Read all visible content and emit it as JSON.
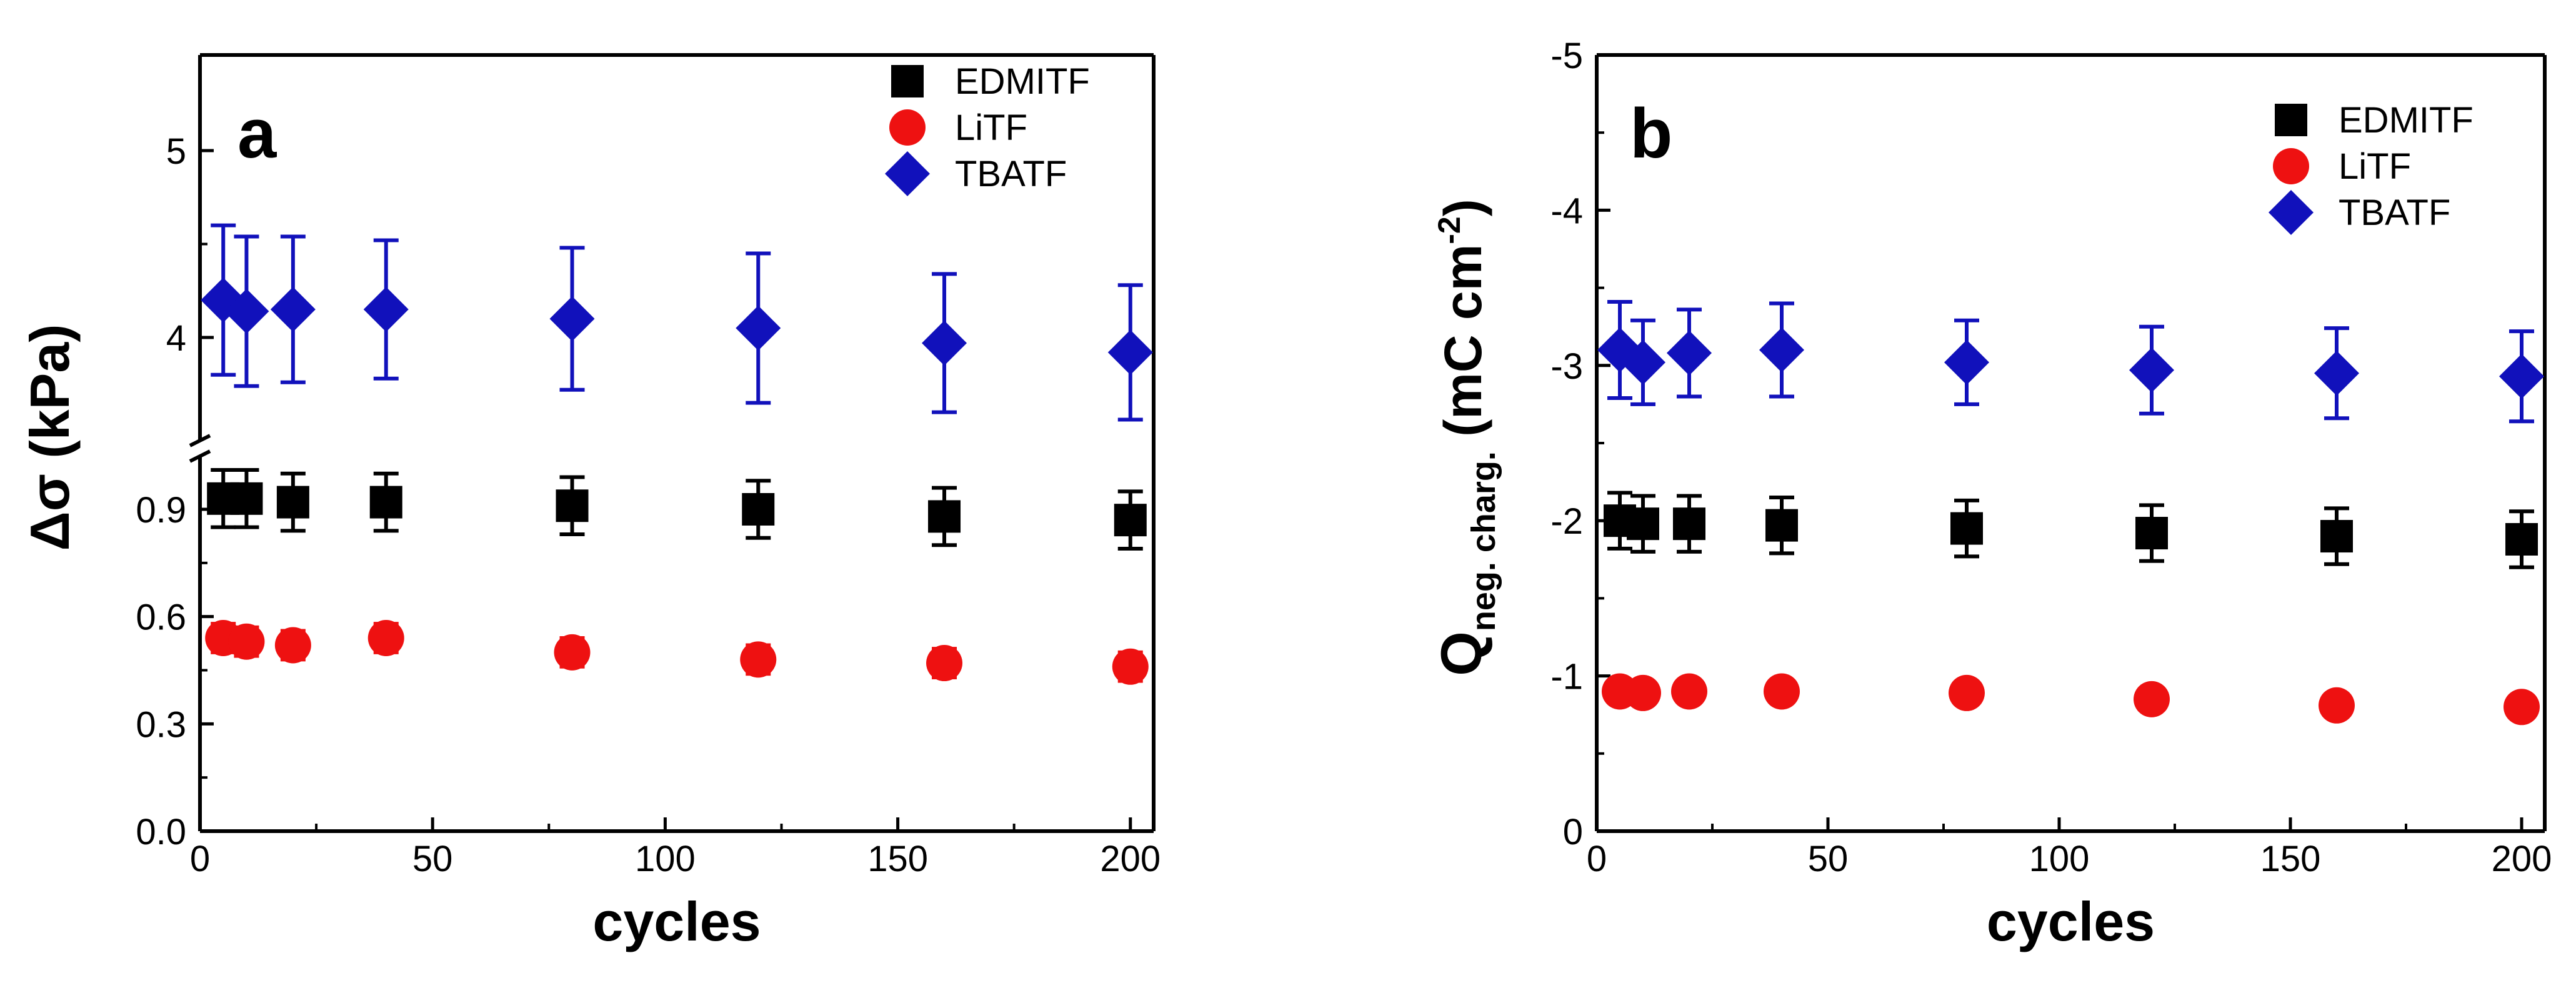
{
  "chart_data": [
    {
      "type": "scatter",
      "panel_label": "a",
      "xlabel": "cycles",
      "ylabel": "Δσ (kPa)",
      "x_ticks": [
        "0",
        "50",
        "100",
        "150",
        "200"
      ],
      "y_ticks_upper": [
        "4",
        "5"
      ],
      "y_ticks_lower": [
        "0.0",
        "0.3",
        "0.6",
        "0.9"
      ],
      "xlim": [
        0,
        205
      ],
      "ylim_upper": [
        3.55,
        5.5
      ],
      "ylim_lower": [
        0,
        1.05
      ],
      "broken_axis": true,
      "legend_position": "top-right",
      "series": [
        {
          "name": "EDMITF",
          "marker": "square",
          "color": "#000000",
          "x": [
            5,
            10,
            20,
            40,
            80,
            120,
            160,
            200
          ],
          "y": [
            0.93,
            0.93,
            0.92,
            0.92,
            0.91,
            0.9,
            0.88,
            0.87
          ],
          "err": [
            0.08,
            0.08,
            0.08,
            0.08,
            0.08,
            0.08,
            0.08,
            0.08
          ]
        },
        {
          "name": "LiTF",
          "marker": "circle",
          "color": "#ee1111",
          "x": [
            5,
            10,
            20,
            40,
            80,
            120,
            160,
            200
          ],
          "y": [
            0.54,
            0.53,
            0.52,
            0.54,
            0.5,
            0.48,
            0.47,
            0.46
          ],
          "err": [
            0.04,
            0.04,
            0.04,
            0.04,
            0.04,
            0.04,
            0.04,
            0.04
          ]
        },
        {
          "name": "TBATF",
          "marker": "diamond",
          "color": "#1111bb",
          "x": [
            5,
            10,
            20,
            40,
            80,
            120,
            160,
            200
          ],
          "y": [
            4.2,
            4.14,
            4.15,
            4.15,
            4.1,
            4.05,
            3.97,
            3.92
          ],
          "err": [
            0.4,
            0.4,
            0.39,
            0.37,
            0.38,
            0.4,
            0.37,
            0.36
          ]
        }
      ]
    },
    {
      "type": "scatter",
      "panel_label": "b",
      "xlabel": "cycles",
      "ylabel_main": "Q",
      "ylabel_sub": "neg. charg.",
      "ylabel_unit": "(mC cm",
      "ylabel_sup": "-2",
      "ylabel_close": ")",
      "x_ticks": [
        "0",
        "50",
        "100",
        "150",
        "200"
      ],
      "y_ticks": [
        "0",
        "-1",
        "-2",
        "-3",
        "-4",
        "-5"
      ],
      "xlim": [
        0,
        205
      ],
      "ylim": [
        0,
        -5
      ],
      "legend_position": "top-right",
      "series": [
        {
          "name": "EDMITF",
          "marker": "square",
          "color": "#000000",
          "x": [
            5,
            10,
            20,
            40,
            80,
            120,
            160,
            200
          ],
          "y": [
            -2.0,
            -1.98,
            -1.98,
            -1.97,
            -1.95,
            -1.92,
            -1.9,
            -1.88
          ],
          "err": [
            0.18,
            0.18,
            0.18,
            0.18,
            0.18,
            0.18,
            0.18,
            0.18
          ]
        },
        {
          "name": "LiTF",
          "marker": "circle",
          "color": "#ee1111",
          "x": [
            5,
            10,
            20,
            40,
            80,
            120,
            160,
            200
          ],
          "y": [
            -0.9,
            -0.89,
            -0.9,
            -0.9,
            -0.89,
            -0.85,
            -0.81,
            -0.8
          ],
          "err": [
            0.07,
            0.07,
            0.07,
            0.07,
            0.07,
            0.07,
            0.07,
            0.07
          ]
        },
        {
          "name": "TBATF",
          "marker": "diamond",
          "color": "#1111bb",
          "x": [
            5,
            10,
            20,
            40,
            80,
            120,
            160,
            200
          ],
          "y": [
            -3.1,
            -3.02,
            -3.08,
            -3.1,
            -3.02,
            -2.97,
            -2.95,
            -2.93
          ],
          "err": [
            0.31,
            0.27,
            0.28,
            0.3,
            0.27,
            0.28,
            0.29,
            0.29
          ]
        }
      ]
    }
  ]
}
